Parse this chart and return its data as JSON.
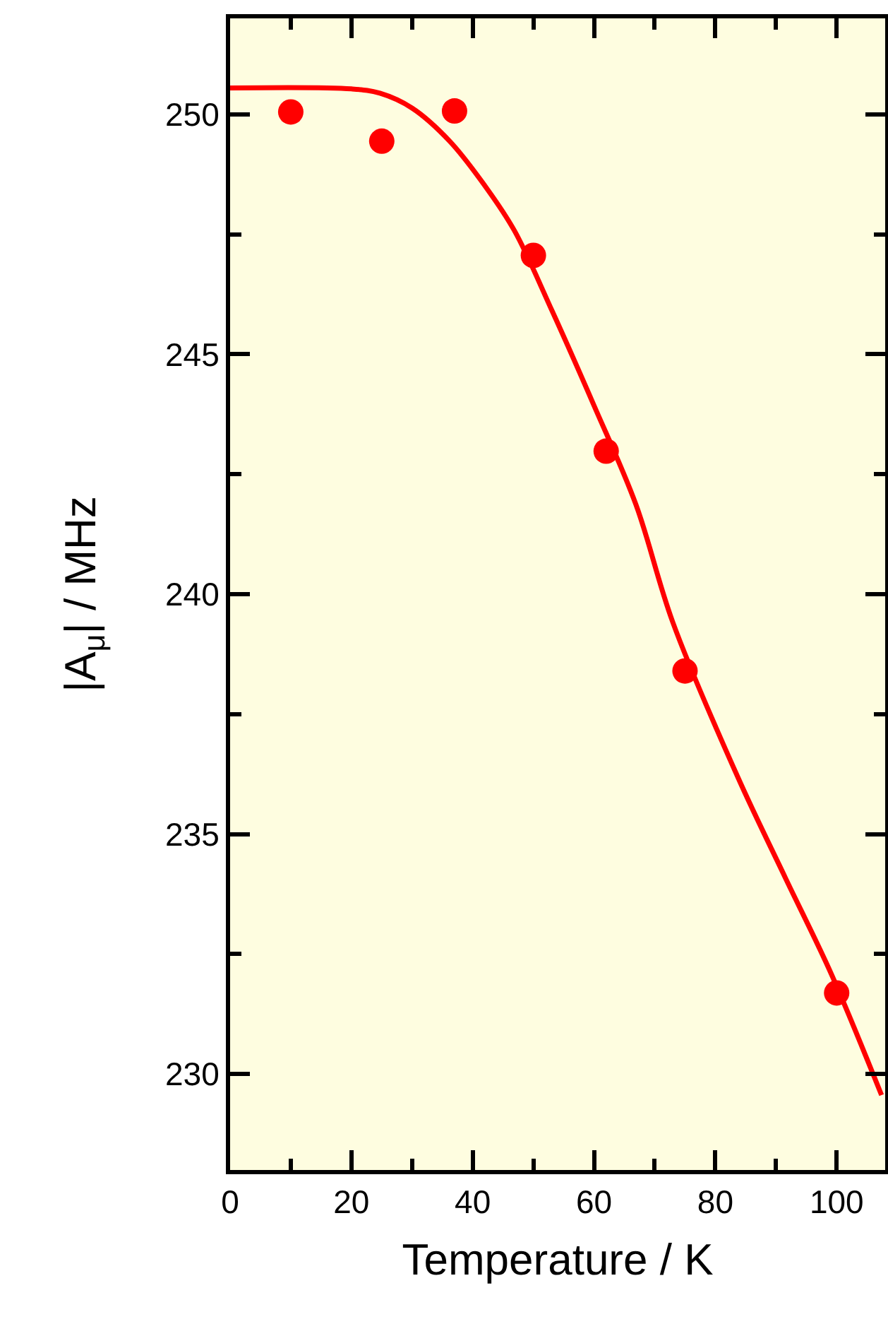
{
  "chart_data": {
    "type": "scatter",
    "xlabel": "Temperature / K",
    "ylabel": "|A$_{μ}$| / MHz",
    "xlim": [
      0,
      108
    ],
    "ylim": [
      228,
      252
    ],
    "xticks": [
      0,
      {
        "value": 10,
        "label": null
      },
      20,
      {
        "value": 30,
        "label": null
      },
      40,
      {
        "value": 50,
        "label": null
      },
      60,
      {
        "value": 70,
        "label": null
      },
      80,
      {
        "value": 90,
        "label": null
      },
      100
    ],
    "yticks": [
      230,
      {
        "value": 232.5,
        "label": null
      },
      235,
      {
        "value": 237.5,
        "label": null
      },
      240,
      {
        "value": 242.5,
        "label": null
      },
      245,
      {
        "value": 247.5,
        "label": null
      },
      250
    ],
    "grid": false,
    "marker": "circle",
    "series": [
      {
        "color": "#ff0000",
        "x": [
          10,
          25,
          37,
          50,
          62,
          75,
          100
        ],
        "values": [
          250.05,
          249.44,
          250.07,
          247.06,
          242.98,
          238.4,
          231.69
        ]
      },
      {
        "type": "line",
        "color": "#ff0000",
        "line_style": "solid",
        "marker": "none",
        "x": [
          0,
          20,
          24.7,
          30,
          36.2,
          42.3,
          46.9,
          53.1,
          60,
          66.9,
          73,
          83.8,
          91.5,
          99.1,
          107.4
        ],
        "values": [
          250.55,
          250.53,
          250.44,
          250.13,
          249.44,
          248.46,
          247.57,
          245.9,
          243.93,
          241.87,
          239.41,
          236.16,
          234.1,
          232.09,
          229.56
        ]
      }
    ]
  }
}
